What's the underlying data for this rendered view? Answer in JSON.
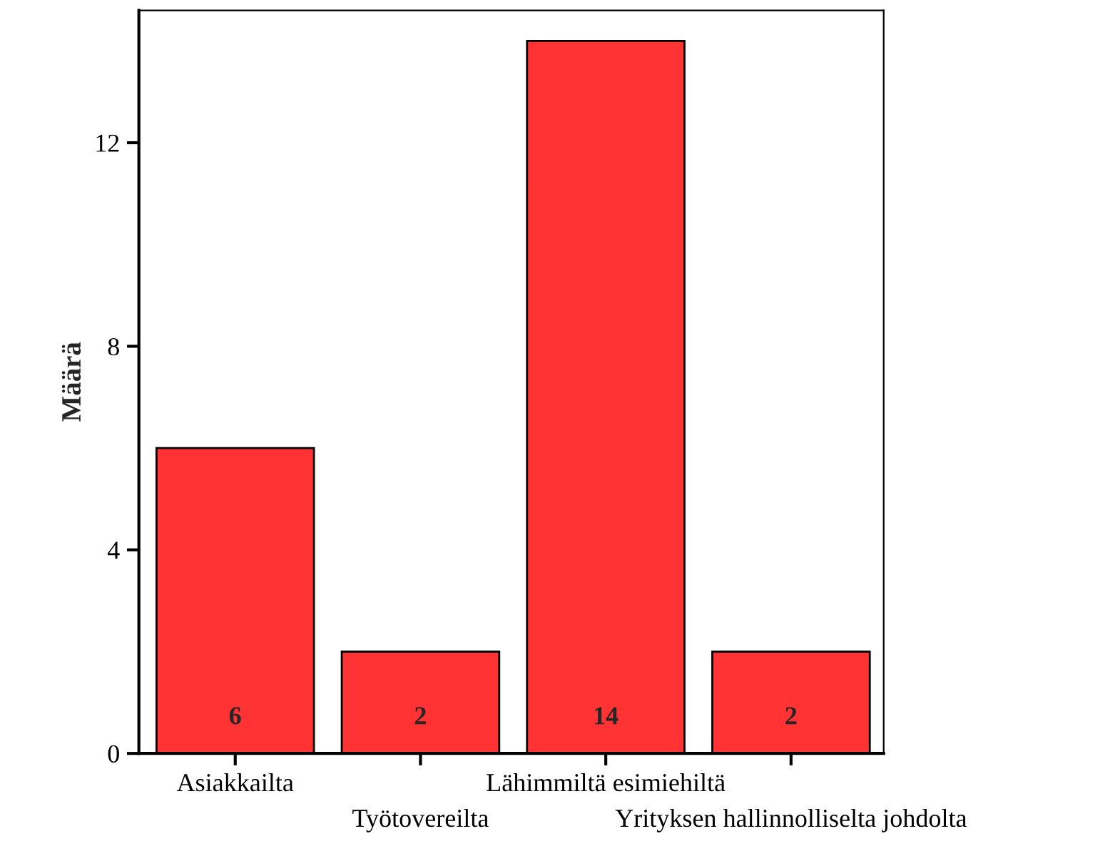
{
  "chart_data": {
    "type": "bar",
    "ylabel": "Määrä",
    "categories": [
      "Asiakkailta",
      "Työtovereilta",
      "Lähimmiltä esimiehiltä",
      "Yrityksen hallinnolliselta johdolta"
    ],
    "values": [
      6,
      2,
      14,
      2
    ],
    "color": "#ff3333",
    "ylim": [
      0,
      14.6
    ],
    "yticks": [
      0,
      4,
      8,
      12
    ],
    "grid": false,
    "data_labels": true
  }
}
